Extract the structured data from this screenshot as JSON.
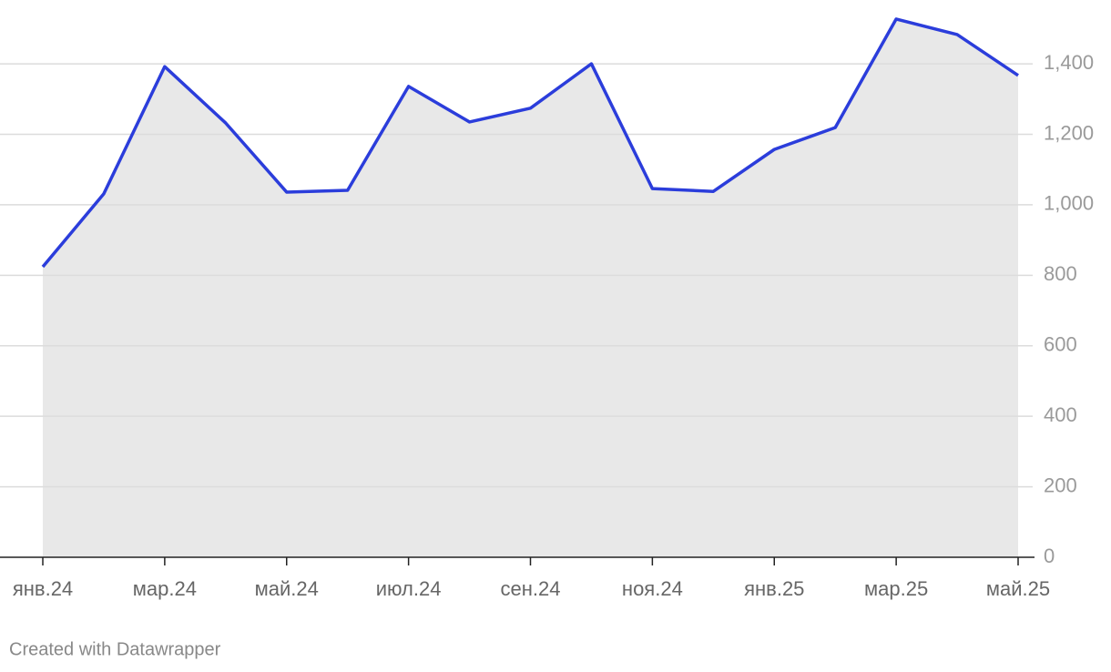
{
  "chart_data": {
    "type": "area",
    "categories": [
      "янв.24",
      null,
      "мар.24",
      null,
      "май.24",
      null,
      "июл.24",
      null,
      "сен.24",
      null,
      "ноя.24",
      null,
      "янв.25",
      null,
      "мар.25",
      null,
      "май.25"
    ],
    "values": [
      824,
      1031,
      1392,
      1232,
      1036,
      1041,
      1336,
      1235,
      1274,
      1400,
      1046,
      1038,
      1157,
      1219,
      1527,
      1483,
      1367
    ],
    "color": "#2b3ddb",
    "fill": "#e8e8e8",
    "ylim": [
      0,
      1550
    ],
    "yticks": [
      0,
      200,
      400,
      600,
      800,
      {
        "value": 1000,
        "label": "1,000"
      },
      {
        "value": 1200,
        "label": "1,200"
      },
      {
        "value": 1400,
        "label": "1,400"
      }
    ],
    "grid": true,
    "credit": "Created with Datawrapper"
  }
}
